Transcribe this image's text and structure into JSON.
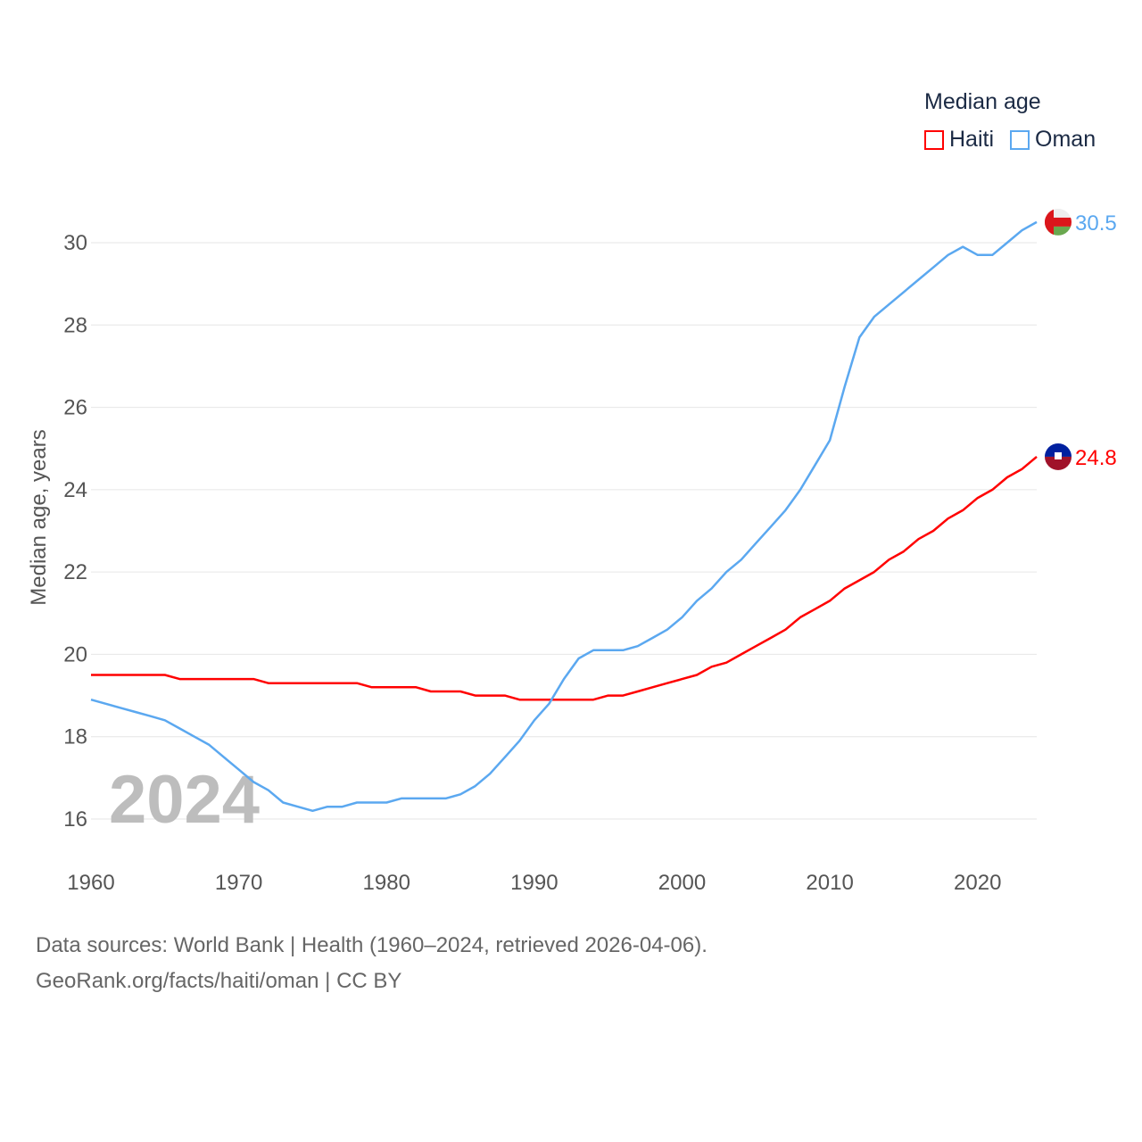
{
  "chart_data": {
    "type": "line",
    "title": "",
    "ylabel": "Median age, years",
    "xlabel": "",
    "xlim": [
      1960,
      2024
    ],
    "ylim": [
      15,
      31
    ],
    "yticks": [
      16,
      18,
      20,
      22,
      24,
      26,
      28,
      30
    ],
    "xticks": [
      1960,
      1970,
      1980,
      1990,
      2000,
      2010,
      2020
    ],
    "grid": true,
    "legend_title": "Median age",
    "legend_position": "top-right",
    "year_watermark": "2024",
    "x": [
      1960,
      1961,
      1962,
      1963,
      1964,
      1965,
      1966,
      1967,
      1968,
      1969,
      1970,
      1971,
      1972,
      1973,
      1974,
      1975,
      1976,
      1977,
      1978,
      1979,
      1980,
      1981,
      1982,
      1983,
      1984,
      1985,
      1986,
      1987,
      1988,
      1989,
      1990,
      1991,
      1992,
      1993,
      1994,
      1995,
      1996,
      1997,
      1998,
      1999,
      2000,
      2001,
      2002,
      2003,
      2004,
      2005,
      2006,
      2007,
      2008,
      2009,
      2010,
      2011,
      2012,
      2013,
      2014,
      2015,
      2016,
      2017,
      2018,
      2019,
      2020,
      2021,
      2022,
      2023,
      2024
    ],
    "series": [
      {
        "name": "Haiti",
        "color": "#ff0000",
        "end_label": "24.8",
        "values": [
          19.5,
          19.5,
          19.5,
          19.5,
          19.5,
          19.5,
          19.4,
          19.4,
          19.4,
          19.4,
          19.4,
          19.4,
          19.3,
          19.3,
          19.3,
          19.3,
          19.3,
          19.3,
          19.3,
          19.2,
          19.2,
          19.2,
          19.2,
          19.1,
          19.1,
          19.1,
          19.0,
          19.0,
          19.0,
          18.9,
          18.9,
          18.9,
          18.9,
          18.9,
          18.9,
          19.0,
          19.0,
          19.1,
          19.2,
          19.3,
          19.4,
          19.5,
          19.7,
          19.8,
          20.0,
          20.2,
          20.4,
          20.6,
          20.9,
          21.1,
          21.3,
          21.6,
          21.8,
          22.0,
          22.3,
          22.5,
          22.8,
          23.0,
          23.3,
          23.5,
          23.8,
          24.0,
          24.3,
          24.5,
          24.8
        ]
      },
      {
        "name": "Oman",
        "color": "#5ba8f0",
        "end_label": "30.5",
        "values": [
          18.9,
          18.8,
          18.7,
          18.6,
          18.5,
          18.4,
          18.2,
          18.0,
          17.8,
          17.5,
          17.2,
          16.9,
          16.7,
          16.4,
          16.3,
          16.2,
          16.3,
          16.3,
          16.4,
          16.4,
          16.4,
          16.5,
          16.5,
          16.5,
          16.5,
          16.6,
          16.8,
          17.1,
          17.5,
          17.9,
          18.4,
          18.8,
          19.4,
          19.9,
          20.1,
          20.1,
          20.1,
          20.2,
          20.4,
          20.6,
          20.9,
          21.3,
          21.6,
          22.0,
          22.3,
          22.7,
          23.1,
          23.5,
          24.0,
          24.6,
          25.2,
          26.5,
          27.7,
          28.2,
          28.5,
          28.8,
          29.1,
          29.4,
          29.7,
          29.9,
          29.7,
          29.7,
          30.0,
          30.3,
          30.5
        ]
      }
    ]
  },
  "footer": {
    "line1": "Data sources: World Bank | Health (1960–2024, retrieved 2026-04-06).",
    "line2": "GeoRank.org/facts/haiti/oman | CC BY"
  }
}
